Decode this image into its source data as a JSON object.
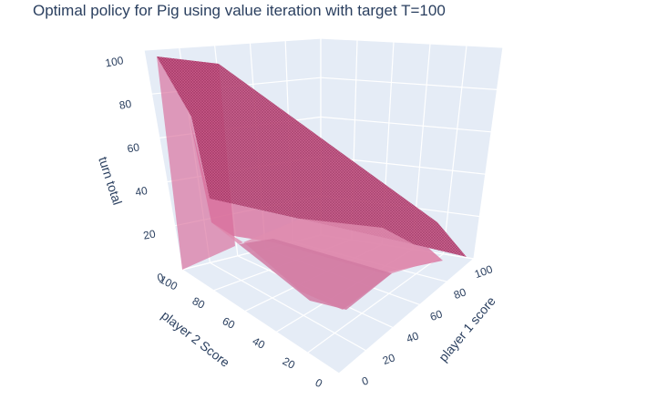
{
  "chart_data": {
    "type": "surface3d",
    "title": "Optimal policy for Pig using value iteration with target T=100",
    "xlabel": "player 1 score",
    "ylabel": "player 2 Score",
    "zlabel": "turn total",
    "xlim": [
      0,
      100
    ],
    "ylim": [
      0,
      100
    ],
    "zlim": [
      0,
      100
    ],
    "xticks": [
      0,
      20,
      40,
      60,
      80,
      100
    ],
    "yticks": [
      0,
      20,
      40,
      60,
      80,
      100
    ],
    "zticks": [
      0,
      20,
      40,
      60,
      80,
      100
    ],
    "colors": {
      "surface_fill": "#d86c9a",
      "surface_edge": "#a8305e",
      "surface_dark": "#b8497a",
      "pane": "#e5ecf6",
      "grid": "#ffffff",
      "text": "#2a3f5f"
    },
    "surfaces": [
      {
        "description_points": [
          [
            0,
            100,
            100
          ],
          [
            100,
            100,
            100
          ],
          [
            100,
            0,
            0
          ],
          [
            0,
            0,
            0
          ]
        ],
        "role": "back-wall"
      }
    ]
  }
}
